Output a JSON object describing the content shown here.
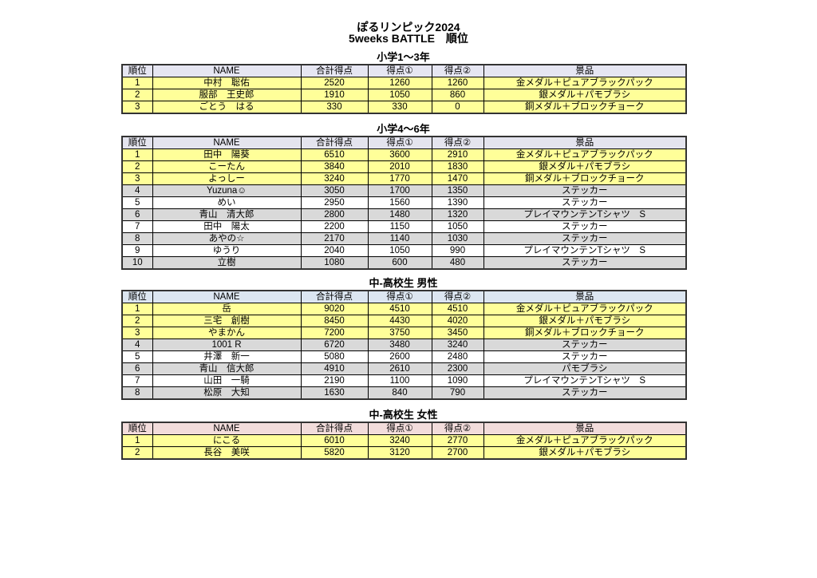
{
  "title": "ぽるリンピック2024",
  "subtitle": "5weeks BATTLE　順位",
  "columns": [
    "順位",
    "NAME",
    "合計得点",
    "得点①",
    "得点②",
    "景品"
  ],
  "header_colors": {
    "sec0": "#e6e6f2",
    "sec1": "#e4e4ee",
    "sec2": "#dce6f1",
    "sec3": "#f2dcdb"
  },
  "row_colors": {
    "yellow": "#ffff99",
    "gray": "#d9d9d9",
    "white": "#ffffff"
  },
  "sections": [
    {
      "title": "小学1～3年",
      "rows": [
        {
          "rank": "1",
          "name": "中村　聡佑",
          "total": "2520",
          "s1": "1260",
          "s2": "1260",
          "prize": "金メダル＋ピュアブラックパック",
          "tier": "yellow"
        },
        {
          "rank": "2",
          "name": "服部　王史郎",
          "total": "1910",
          "s1": "1050",
          "s2": "860",
          "prize": "銀メダル＋パモブラシ",
          "tier": "yellow"
        },
        {
          "rank": "3",
          "name": "ごとう　はる",
          "total": "330",
          "s1": "330",
          "s2": "0",
          "prize": "銅メダル＋ブロックチョーク",
          "tier": "yellow"
        }
      ]
    },
    {
      "title": "小学4～6年",
      "rows": [
        {
          "rank": "1",
          "name": "田中　陽葵",
          "total": "6510",
          "s1": "3600",
          "s2": "2910",
          "prize": "金メダル＋ピュアブラックパック",
          "tier": "yellow"
        },
        {
          "rank": "2",
          "name": "こーたん",
          "total": "3840",
          "s1": "2010",
          "s2": "1830",
          "prize": "銀メダル＋パモブラシ",
          "tier": "yellow"
        },
        {
          "rank": "3",
          "name": "よっしー",
          "total": "3240",
          "s1": "1770",
          "s2": "1470",
          "prize": "銅メダル＋ブロックチョーク",
          "tier": "yellow"
        },
        {
          "rank": "4",
          "name": "Yuzuna☺",
          "total": "3050",
          "s1": "1700",
          "s2": "1350",
          "prize": "ステッカー",
          "tier": "gray"
        },
        {
          "rank": "5",
          "name": "めい",
          "total": "2950",
          "s1": "1560",
          "s2": "1390",
          "prize": "ステッカー",
          "tier": "white"
        },
        {
          "rank": "6",
          "name": "青山　清大郎",
          "total": "2800",
          "s1": "1480",
          "s2": "1320",
          "prize": "プレイマウンテンTシャツ　S",
          "tier": "gray"
        },
        {
          "rank": "7",
          "name": "田中　陽太",
          "total": "2200",
          "s1": "1150",
          "s2": "1050",
          "prize": "ステッカー",
          "tier": "white"
        },
        {
          "rank": "8",
          "name": "あやの☆",
          "total": "2170",
          "s1": "1140",
          "s2": "1030",
          "prize": "ステッカー",
          "tier": "gray"
        },
        {
          "rank": "9",
          "name": "ゆうり",
          "total": "2040",
          "s1": "1050",
          "s2": "990",
          "prize": "プレイマウンテンTシャツ　S",
          "tier": "white"
        },
        {
          "rank": "10",
          "name": "立樹",
          "total": "1080",
          "s1": "600",
          "s2": "480",
          "prize": "ステッカー",
          "tier": "gray"
        }
      ]
    },
    {
      "title": "中-高校生 男性",
      "rows": [
        {
          "rank": "1",
          "name": "岳",
          "total": "9020",
          "s1": "4510",
          "s2": "4510",
          "prize": "金メダル＋ピュアブラックパック",
          "tier": "yellow"
        },
        {
          "rank": "2",
          "name": "三宅　創樹",
          "total": "8450",
          "s1": "4430",
          "s2": "4020",
          "prize": "銀メダル＋パモブラシ",
          "tier": "yellow"
        },
        {
          "rank": "3",
          "name": "やまかん",
          "total": "7200",
          "s1": "3750",
          "s2": "3450",
          "prize": "銅メダル＋ブロックチョーク",
          "tier": "yellow"
        },
        {
          "rank": "4",
          "name": "1001 R",
          "total": "6720",
          "s1": "3480",
          "s2": "3240",
          "prize": "ステッカー",
          "tier": "gray"
        },
        {
          "rank": "5",
          "name": "井澤　新一",
          "total": "5080",
          "s1": "2600",
          "s2": "2480",
          "prize": "ステッカー",
          "tier": "white"
        },
        {
          "rank": "6",
          "name": "青山　信大郎",
          "total": "4910",
          "s1": "2610",
          "s2": "2300",
          "prize": "パモブラシ",
          "tier": "gray"
        },
        {
          "rank": "7",
          "name": "山田　一騎",
          "total": "2190",
          "s1": "1100",
          "s2": "1090",
          "prize": "プレイマウンテンTシャツ　S",
          "tier": "white"
        },
        {
          "rank": "8",
          "name": "松原　大知",
          "total": "1630",
          "s1": "840",
          "s2": "790",
          "prize": "ステッカー",
          "tier": "gray"
        }
      ]
    },
    {
      "title": "中-高校生 女性",
      "rows": [
        {
          "rank": "1",
          "name": "にこる",
          "total": "6010",
          "s1": "3240",
          "s2": "2770",
          "prize": "金メダル＋ピュアブラックパック",
          "tier": "yellow"
        },
        {
          "rank": "2",
          "name": "長谷　美咲",
          "total": "5820",
          "s1": "3120",
          "s2": "2700",
          "prize": "銀メダル＋パモブラシ",
          "tier": "yellow"
        }
      ]
    }
  ]
}
